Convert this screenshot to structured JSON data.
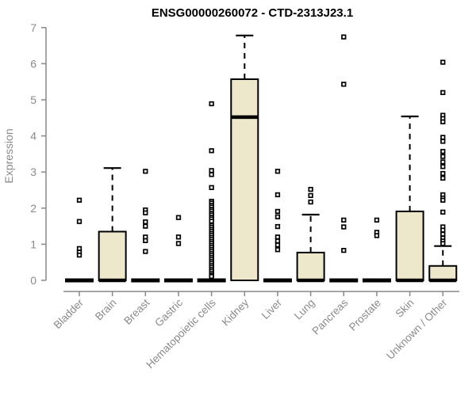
{
  "title": "ENSG00000260072 - CTD-2313J23.1",
  "chart_data": {
    "type": "boxplot",
    "title": "ENSG00000260072 - CTD-2313J23.1",
    "xlabel": "",
    "ylabel": "Expression",
    "ylim": [
      0,
      7
    ],
    "yticks": [
      0,
      1,
      2,
      3,
      4,
      5,
      6,
      7
    ],
    "grid": false,
    "legend": "none",
    "categories": [
      "Bladder",
      "Brain",
      "Breast",
      "Gastric",
      "Hematopoietic cells",
      "Kidney",
      "Liver",
      "Lung",
      "Pancreas",
      "Prostate",
      "Skin",
      "Unknown / Other"
    ],
    "series": [
      {
        "name": "Bladder",
        "q1": 0,
        "median": 0,
        "q3": 0,
        "whisker_low": 0,
        "whisker_high": 0,
        "outliers": [
          2.22,
          1.63,
          0.88,
          0.78,
          0.7
        ]
      },
      {
        "name": "Brain",
        "q1": 0,
        "median": 0,
        "q3": 1.35,
        "whisker_low": 0,
        "whisker_high": 3.11,
        "outliers": []
      },
      {
        "name": "Breast",
        "q1": 0,
        "median": 0,
        "q3": 0,
        "whisker_low": 0,
        "whisker_high": 0,
        "outliers": [
          3.02,
          1.95,
          1.87,
          1.62,
          1.5,
          1.2,
          1.1,
          0.8
        ]
      },
      {
        "name": "Gastric",
        "q1": 0,
        "median": 0,
        "q3": 0,
        "whisker_low": 0,
        "whisker_high": 0,
        "outliers": [
          1.74,
          1.2,
          1.02
        ]
      },
      {
        "name": "Hematopoietic cells",
        "q1": 0,
        "median": 0,
        "q3": 0,
        "whisker_low": 0,
        "whisker_high": 0,
        "outliers": [
          4.89,
          3.59,
          3.04,
          2.93,
          2.57,
          2.19,
          2.14,
          2.08,
          2.03,
          1.97,
          1.92,
          1.86,
          1.81,
          1.75,
          1.7,
          1.64,
          1.52,
          1.47,
          1.41,
          1.36,
          1.3,
          1.25,
          1.19,
          1.14,
          1.08,
          1.03,
          0.97,
          0.92,
          0.86,
          0.81,
          0.75,
          0.7,
          0.64,
          0.59,
          0.53,
          0.48,
          0.42,
          0.37,
          0.31,
          0.26,
          0.2,
          0.15,
          0.11
        ]
      },
      {
        "name": "Kidney",
        "q1": 0,
        "median": 4.52,
        "q3": 5.57,
        "whisker_low": 0,
        "whisker_high": 6.78,
        "outliers": []
      },
      {
        "name": "Liver",
        "q1": 0,
        "median": 0,
        "q3": 0,
        "whisker_low": 0,
        "whisker_high": 0,
        "outliers": [
          3.02,
          2.37,
          1.91,
          1.76,
          1.49,
          1.2,
          1.09,
          0.98,
          0.85
        ]
      },
      {
        "name": "Lung",
        "q1": 0,
        "median": 0,
        "q3": 0.77,
        "whisker_low": 0,
        "whisker_high": 1.82,
        "outliers": [
          2.52,
          2.35,
          2.17
        ]
      },
      {
        "name": "Pancreas",
        "q1": 0,
        "median": 0,
        "q3": 0,
        "whisker_low": 0,
        "whisker_high": 0,
        "outliers": [
          6.74,
          5.43,
          1.67,
          1.48,
          0.83
        ]
      },
      {
        "name": "Prostate",
        "q1": 0,
        "median": 0,
        "q3": 0,
        "whisker_low": 0,
        "whisker_high": 0,
        "outliers": [
          1.67,
          1.33,
          1.24
        ]
      },
      {
        "name": "Skin",
        "q1": 0,
        "median": 0,
        "q3": 1.91,
        "whisker_low": 0,
        "whisker_high": 4.54,
        "outliers": []
      },
      {
        "name": "Unknown / Other",
        "q1": 0,
        "median": 0,
        "q3": 0.4,
        "whisker_low": 0,
        "whisker_high": 0.95,
        "outliers": [
          6.04,
          5.2,
          4.57,
          4.48,
          4.39,
          3.96,
          3.85,
          3.57,
          3.43,
          3.28,
          3.15,
          2.96,
          2.83,
          2.37,
          2.28,
          2.22,
          1.89,
          1.48,
          1.39,
          1.28,
          1.17,
          1.09,
          1.02
        ]
      }
    ],
    "colors": {
      "box_fill": "#EDE7CC",
      "box_stroke": "#000000",
      "median": "#000000",
      "whisker": "#000000",
      "outlier_stroke": "#000000",
      "outlier_fill": "#ffffff",
      "axis": "#888888",
      "tick_label": "#8a8a8a",
      "title": "#000000",
      "background": "#ffffff"
    }
  }
}
